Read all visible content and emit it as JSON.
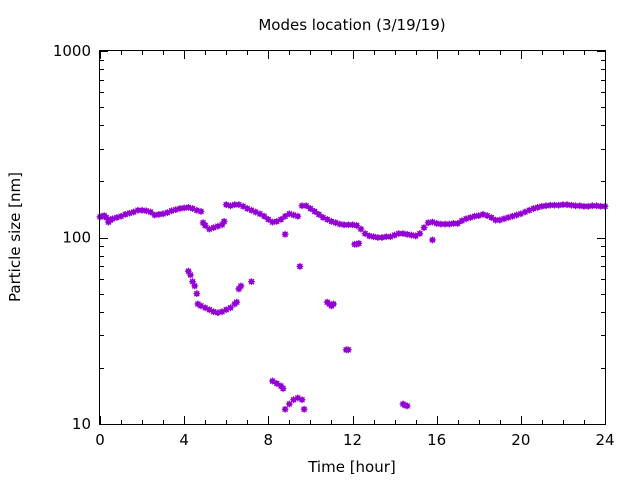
{
  "chart_data": {
    "type": "scatter",
    "title": "Modes location (3/19/19)",
    "xlabel": "Time [hour]",
    "ylabel": "Particle size [nm]",
    "xlim": [
      0,
      24
    ],
    "ylim": [
      10,
      1000
    ],
    "yscale": "log",
    "x_ticks": [
      0,
      4,
      8,
      12,
      16,
      20,
      24
    ],
    "x_tick_labels": [
      "0",
      "4",
      "8",
      "12",
      "16",
      "20",
      "24"
    ],
    "y_ticks": [
      10,
      100,
      1000
    ],
    "y_tick_labels": [
      "10",
      "100",
      "1000"
    ],
    "grid": false,
    "marker_color": "#9400d3",
    "series": [
      {
        "points": [
          [
            0.0,
            129
          ],
          [
            0.1,
            130
          ],
          [
            0.2,
            131
          ],
          [
            0.3,
            128
          ],
          [
            0.4,
            121
          ],
          [
            0.5,
            124
          ],
          [
            0.6,
            126
          ],
          [
            0.8,
            128
          ],
          [
            1.0,
            130
          ],
          [
            1.2,
            133
          ],
          [
            1.4,
            135
          ],
          [
            1.6,
            137
          ],
          [
            1.8,
            140
          ],
          [
            2.0,
            140
          ],
          [
            2.2,
            139
          ],
          [
            2.4,
            137
          ],
          [
            2.6,
            132
          ],
          [
            2.8,
            133
          ],
          [
            3.0,
            134
          ],
          [
            3.2,
            136
          ],
          [
            3.4,
            139
          ],
          [
            3.6,
            141
          ],
          [
            3.8,
            143
          ],
          [
            4.0,
            144
          ],
          [
            4.2,
            145
          ],
          [
            4.4,
            143
          ],
          [
            4.6,
            140
          ],
          [
            4.8,
            138
          ],
          [
            4.9,
            120
          ],
          [
            5.0,
            116
          ],
          [
            5.2,
            111
          ],
          [
            5.4,
            113
          ],
          [
            5.6,
            115
          ],
          [
            5.8,
            117
          ],
          [
            5.9,
            122
          ],
          [
            6.0,
            150
          ],
          [
            6.2,
            148
          ],
          [
            6.4,
            150
          ],
          [
            6.6,
            150
          ],
          [
            6.8,
            147
          ],
          [
            7.0,
            143
          ],
          [
            7.2,
            140
          ],
          [
            7.4,
            137
          ],
          [
            7.6,
            134
          ],
          [
            7.8,
            130
          ],
          [
            8.0,
            125
          ],
          [
            8.2,
            121
          ],
          [
            8.4,
            122
          ],
          [
            8.6,
            125
          ],
          [
            8.8,
            130
          ],
          [
            9.0,
            134
          ],
          [
            9.2,
            132
          ],
          [
            9.4,
            130
          ],
          [
            9.6,
            148
          ],
          [
            9.8,
            148
          ],
          [
            10.0,
            143
          ],
          [
            10.2,
            138
          ],
          [
            10.4,
            133
          ],
          [
            10.6,
            128
          ],
          [
            10.8,
            125
          ],
          [
            11.0,
            122
          ],
          [
            11.2,
            120
          ],
          [
            11.4,
            118
          ],
          [
            11.6,
            117
          ],
          [
            11.8,
            117
          ],
          [
            12.0,
            117
          ],
          [
            12.2,
            116
          ],
          [
            12.4,
            111
          ],
          [
            12.6,
            105
          ],
          [
            12.8,
            102
          ],
          [
            13.0,
            101
          ],
          [
            13.2,
            100
          ],
          [
            13.4,
            100
          ],
          [
            13.6,
            101
          ],
          [
            13.8,
            101
          ],
          [
            14.0,
            103
          ],
          [
            14.2,
            105
          ],
          [
            14.4,
            105
          ],
          [
            14.6,
            104
          ],
          [
            14.8,
            103
          ],
          [
            15.0,
            102
          ],
          [
            15.2,
            105
          ],
          [
            15.4,
            113
          ],
          [
            15.6,
            120
          ],
          [
            15.8,
            121
          ],
          [
            16.0,
            119
          ],
          [
            16.2,
            118
          ],
          [
            16.4,
            118
          ],
          [
            16.6,
            118
          ],
          [
            16.8,
            119
          ],
          [
            17.0,
            119
          ],
          [
            17.2,
            123
          ],
          [
            17.4,
            126
          ],
          [
            17.6,
            128
          ],
          [
            17.8,
            130
          ],
          [
            18.0,
            131
          ],
          [
            18.2,
            133
          ],
          [
            18.4,
            131
          ],
          [
            18.6,
            128
          ],
          [
            18.8,
            124
          ],
          [
            19.0,
            124
          ],
          [
            19.2,
            126
          ],
          [
            19.4,
            128
          ],
          [
            19.6,
            130
          ],
          [
            19.8,
            132
          ],
          [
            20.0,
            134
          ],
          [
            20.2,
            137
          ],
          [
            20.4,
            140
          ],
          [
            20.6,
            143
          ],
          [
            20.8,
            145
          ],
          [
            21.0,
            147
          ],
          [
            21.2,
            148
          ],
          [
            21.4,
            149
          ],
          [
            21.6,
            149
          ],
          [
            21.8,
            149
          ],
          [
            22.0,
            150
          ],
          [
            22.2,
            150
          ],
          [
            22.4,
            149
          ],
          [
            22.6,
            148
          ],
          [
            22.8,
            148
          ],
          [
            23.0,
            147
          ],
          [
            23.2,
            147
          ],
          [
            23.4,
            148
          ],
          [
            23.6,
            148
          ],
          [
            23.8,
            147
          ],
          [
            24.0,
            147
          ],
          [
            4.2,
            66
          ],
          [
            4.3,
            63
          ],
          [
            4.4,
            58
          ],
          [
            4.5,
            55
          ],
          [
            4.6,
            50
          ],
          [
            4.65,
            44
          ],
          [
            4.8,
            43
          ],
          [
            5.0,
            42
          ],
          [
            5.2,
            41
          ],
          [
            5.4,
            40
          ],
          [
            5.6,
            39.5
          ],
          [
            5.8,
            40
          ],
          [
            6.0,
            41
          ],
          [
            6.2,
            42
          ],
          [
            6.4,
            44
          ],
          [
            6.5,
            45
          ],
          [
            6.6,
            53
          ],
          [
            6.7,
            55
          ],
          [
            7.2,
            58
          ],
          [
            8.8,
            104
          ],
          [
            9.5,
            70
          ],
          [
            10.8,
            45
          ],
          [
            10.9,
            44
          ],
          [
            11.0,
            43
          ],
          [
            11.1,
            44
          ],
          [
            11.7,
            25
          ],
          [
            11.8,
            25
          ],
          [
            12.1,
            92
          ],
          [
            12.2,
            92
          ],
          [
            12.3,
            93
          ],
          [
            15.8,
            97
          ],
          [
            8.2,
            17
          ],
          [
            8.4,
            16.5
          ],
          [
            8.6,
            16
          ],
          [
            8.7,
            15.5
          ],
          [
            8.8,
            12
          ],
          [
            9.0,
            12.8
          ],
          [
            9.2,
            13.5
          ],
          [
            9.4,
            13.8
          ],
          [
            9.6,
            13.5
          ],
          [
            9.7,
            12
          ],
          [
            14.4,
            12.8
          ],
          [
            14.5,
            12.6
          ],
          [
            14.6,
            12.5
          ]
        ]
      }
    ]
  }
}
